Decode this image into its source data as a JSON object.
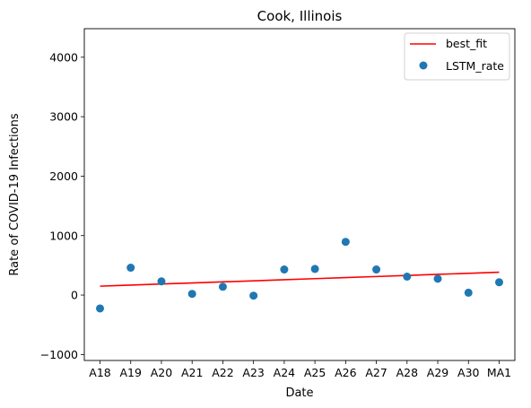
{
  "chart_data": {
    "type": "scatter",
    "title": "Cook, Illinois",
    "xlabel": "Date",
    "ylabel": "Rate of COVID-19 Infections",
    "categories": [
      "A18",
      "A19",
      "A20",
      "A21",
      "A22",
      "A23",
      "A24",
      "A25",
      "A26",
      "A27",
      "A28",
      "A29",
      "A30",
      "MA1"
    ],
    "yticks": [
      -1000,
      0,
      1000,
      2000,
      3000,
      4000
    ],
    "ylim": [
      -1100,
      4480
    ],
    "grid": false,
    "legend_position": "top-right",
    "series": [
      {
        "name": "best_fit",
        "kind": "line",
        "color": "#ff0000",
        "values": [
          150,
          168,
          186,
          204,
          222,
          240,
          258,
          276,
          294,
          312,
          330,
          348,
          366,
          384
        ]
      },
      {
        "name": "LSTM_rate",
        "kind": "scatter",
        "color": "#1f77b4",
        "values": [
          -225,
          460,
          230,
          20,
          140,
          -10,
          430,
          440,
          895,
          430,
          310,
          275,
          40,
          215
        ]
      }
    ]
  }
}
